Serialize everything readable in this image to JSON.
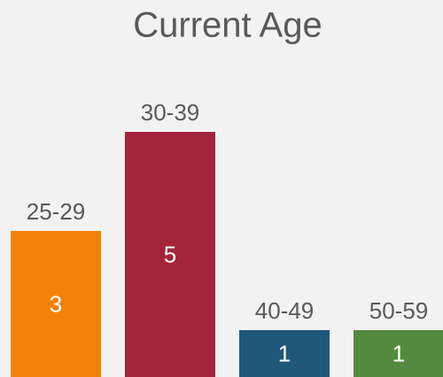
{
  "chart_data": {
    "type": "bar",
    "title": "Current Age",
    "categories": [
      "25-29",
      "30-39",
      "40-49",
      "50-59"
    ],
    "values": [
      3,
      5,
      1,
      1
    ],
    "colors": [
      "#f0820a",
      "#a3253a",
      "#1f587a",
      "#538a3f"
    ]
  }
}
